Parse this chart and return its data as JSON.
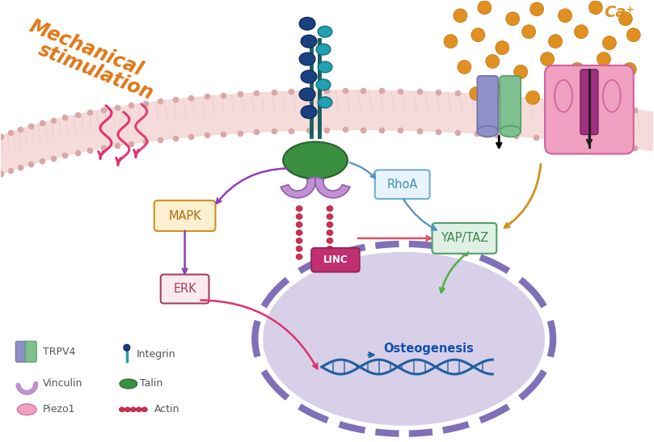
{
  "mechanical_stimulation_text_line1": "Mechanical",
  "mechanical_stimulation_text_line2": "stimulation",
  "ca_text": "Ca⁺",
  "rhoa_text": "RhoA",
  "yap_taz_text": "YAP/TAZ",
  "mapk_text": "MAPK",
  "erk_text": "ERK",
  "linc_text": "LINC",
  "osteogenesis_text": "Osteogenesis",
  "nucleus_fill": "#d8d0e8",
  "nucleus_border": "#8070b8",
  "bg_color": "#ffffff",
  "membrane_fill": "#f5d8d8",
  "membrane_dot": "#d8a8a8",
  "membrane_zigzag": "#e8c0c0",
  "integrin_stem_color": "#1a6060",
  "integrin_dark_blue": "#1a4080",
  "integrin_teal": "#20a0b0",
  "talin_green": "#3a9040",
  "talin_border": "#2a6030",
  "vinculin_color": "#c090d0",
  "vinculin_border": "#9060b0",
  "actin_color": "#d03050",
  "trpv4_purple": "#9090c8",
  "trpv4_purple_border": "#7070a8",
  "trpv4_green": "#80c090",
  "trpv4_green_border": "#50a060",
  "piezo1_pink": "#f0a0c0",
  "piezo1_dark": "#d060a0",
  "piezo1_darkest": "#a03080",
  "ca_dot_color": "#e09020",
  "ca_dot_border": "#c07010",
  "mapk_bg": "#fdf0d0",
  "mapk_border": "#d09020",
  "mapk_text_color": "#b07010",
  "erk_bg": "#fbeaee",
  "erk_border": "#a04060",
  "erk_text_color": "#a04060",
  "rhoa_bg": "#e8f4fc",
  "rhoa_border": "#70acd0",
  "rhoa_text_color": "#4090b8",
  "yaptaz_bg": "#e0f0e4",
  "yaptaz_border": "#50a068",
  "yaptaz_text_color": "#3a8850",
  "linc_bg": "#c03070",
  "linc_text_color": "#ffffff",
  "arrow_purple": "#9040b0",
  "arrow_pink": "#e03070",
  "arrow_blue": "#5090c8",
  "arrow_red": "#e05060",
  "arrow_green": "#50b040",
  "arrow_gold": "#d09020",
  "orange_text": "#e07818",
  "pink_wave": "#e03070"
}
